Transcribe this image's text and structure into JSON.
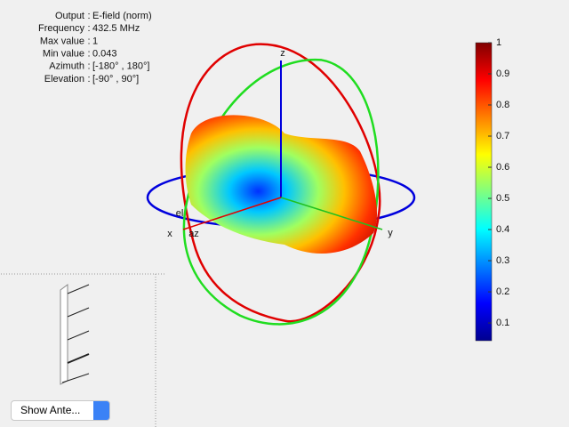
{
  "info": {
    "separator": ":",
    "lines": [
      {
        "label": "Output",
        "value": "E-field (norm)"
      },
      {
        "label": "Frequency",
        "value": "432.5 MHz"
      },
      {
        "label": "Max value",
        "value": "1"
      },
      {
        "label": "Min value",
        "value": "0.043"
      },
      {
        "label": "Azimuth",
        "value": "[-180° , 180°]"
      },
      {
        "label": "Elevation",
        "value": "[-90° , 90°]"
      }
    ]
  },
  "axes": {
    "z": "z",
    "x": "x",
    "y": "y",
    "el": "el",
    "az": "az"
  },
  "colorbar": {
    "clim": [
      0.043,
      1
    ],
    "ticks": [
      0.1,
      0.2,
      0.3,
      0.4,
      0.5,
      0.6,
      0.7,
      0.8,
      0.9,
      1
    ]
  },
  "dropdown": {
    "label": "Show Ante..."
  }
}
